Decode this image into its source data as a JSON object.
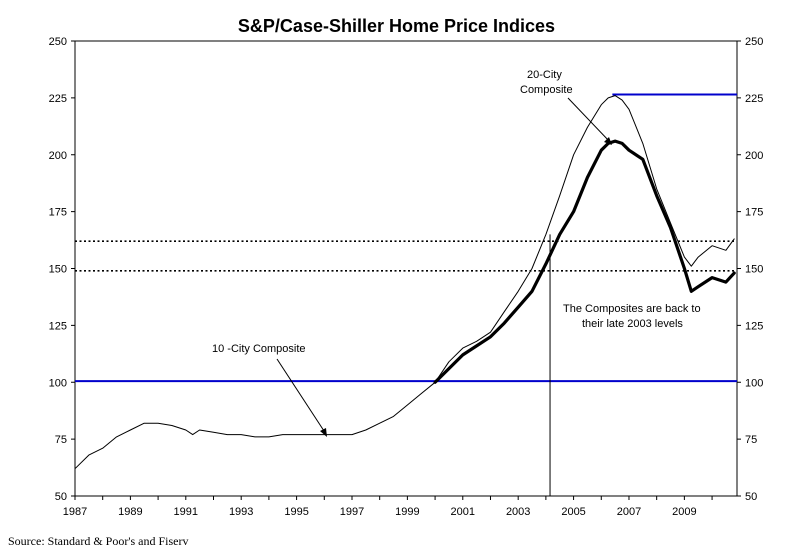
{
  "chart_data": {
    "type": "line",
    "title": "S&P/Case-Shiller Home Price Indices",
    "xlabel": "",
    "ylabel": "",
    "xlim": [
      1987,
      2010.9
    ],
    "ylim": [
      50,
      250
    ],
    "y_ticks": [
      50,
      75,
      100,
      125,
      150,
      175,
      200,
      225,
      250
    ],
    "x_ticks": [
      "1987",
      "1989",
      "1991",
      "1993",
      "1995",
      "1997",
      "1999",
      "2001",
      "2003",
      "2005",
      "2007",
      "2009"
    ],
    "grid": false,
    "legend": "none",
    "series": [
      {
        "name": "10 -City Composite",
        "style": "thin",
        "color": "#000000",
        "x": [
          1987.0,
          1987.5,
          1988.0,
          1988.5,
          1989.0,
          1989.5,
          1990.0,
          1990.5,
          1991.0,
          1991.25,
          1991.5,
          1992.0,
          1992.5,
          1993.0,
          1993.5,
          1994.0,
          1994.5,
          1995.0,
          1995.5,
          1996.0,
          1996.5,
          1997.0,
          1997.5,
          1998.0,
          1998.5,
          1999.0,
          1999.5,
          2000.0,
          2000.5,
          2001.0,
          2001.5,
          2002.0,
          2002.5,
          2003.0,
          2003.5,
          2004.0,
          2004.5,
          2005.0,
          2005.5,
          2006.0,
          2006.25,
          2006.5,
          2006.75,
          2007.0,
          2007.5,
          2008.0,
          2008.5,
          2009.0,
          2009.25,
          2009.5,
          2010.0,
          2010.5,
          2010.8
        ],
        "y": [
          62,
          68,
          71,
          76,
          79,
          82,
          82,
          81,
          79,
          77,
          79,
          78,
          77,
          77,
          76,
          76,
          77,
          77,
          77,
          77,
          77,
          77,
          79,
          82,
          85,
          90,
          95,
          100,
          109,
          115,
          118,
          122,
          131,
          140,
          150,
          165,
          182,
          200,
          212,
          222,
          225,
          226,
          224,
          220,
          205,
          185,
          170,
          155,
          151,
          155,
          160,
          158,
          163
        ]
      },
      {
        "name": "20-City Composite",
        "style": "thick",
        "color": "#000000",
        "x": [
          2000.0,
          2000.5,
          2001.0,
          2001.5,
          2002.0,
          2002.5,
          2003.0,
          2003.5,
          2004.0,
          2004.5,
          2005.0,
          2005.5,
          2006.0,
          2006.25,
          2006.5,
          2006.75,
          2007.0,
          2007.5,
          2008.0,
          2008.5,
          2009.0,
          2009.25,
          2009.5,
          2010.0,
          2010.5,
          2010.8
        ],
        "y": [
          100,
          106,
          112,
          116,
          120,
          126,
          133,
          140,
          152,
          165,
          175,
          190,
          202,
          205,
          206,
          205,
          202,
          198,
          182,
          168,
          150,
          140,
          142,
          146,
          144,
          148
        ]
      }
    ],
    "reference_lines": [
      {
        "y": 100.5,
        "color": "#0000cc",
        "style": "solid"
      },
      {
        "y": 162,
        "color": "#000000",
        "style": "dotted"
      },
      {
        "y": 149,
        "color": "#000000",
        "style": "dotted"
      }
    ],
    "peak_line": {
      "x_start": 2006.4,
      "x_end": 2010.9,
      "y": 226.5,
      "color": "#0000cc"
    },
    "vertical_marker": {
      "x": 2004.15,
      "y_from": 50,
      "y_to": 165
    },
    "annotations": {
      "label_20city_line1": "20-City",
      "label_20city_line2": "Composite",
      "label_10city": "10 -City Composite",
      "note_line1": "The Composites are back to",
      "note_line2": "their late 2003 levels"
    },
    "source": "Source: Standard & Poor's and Fiserv"
  }
}
